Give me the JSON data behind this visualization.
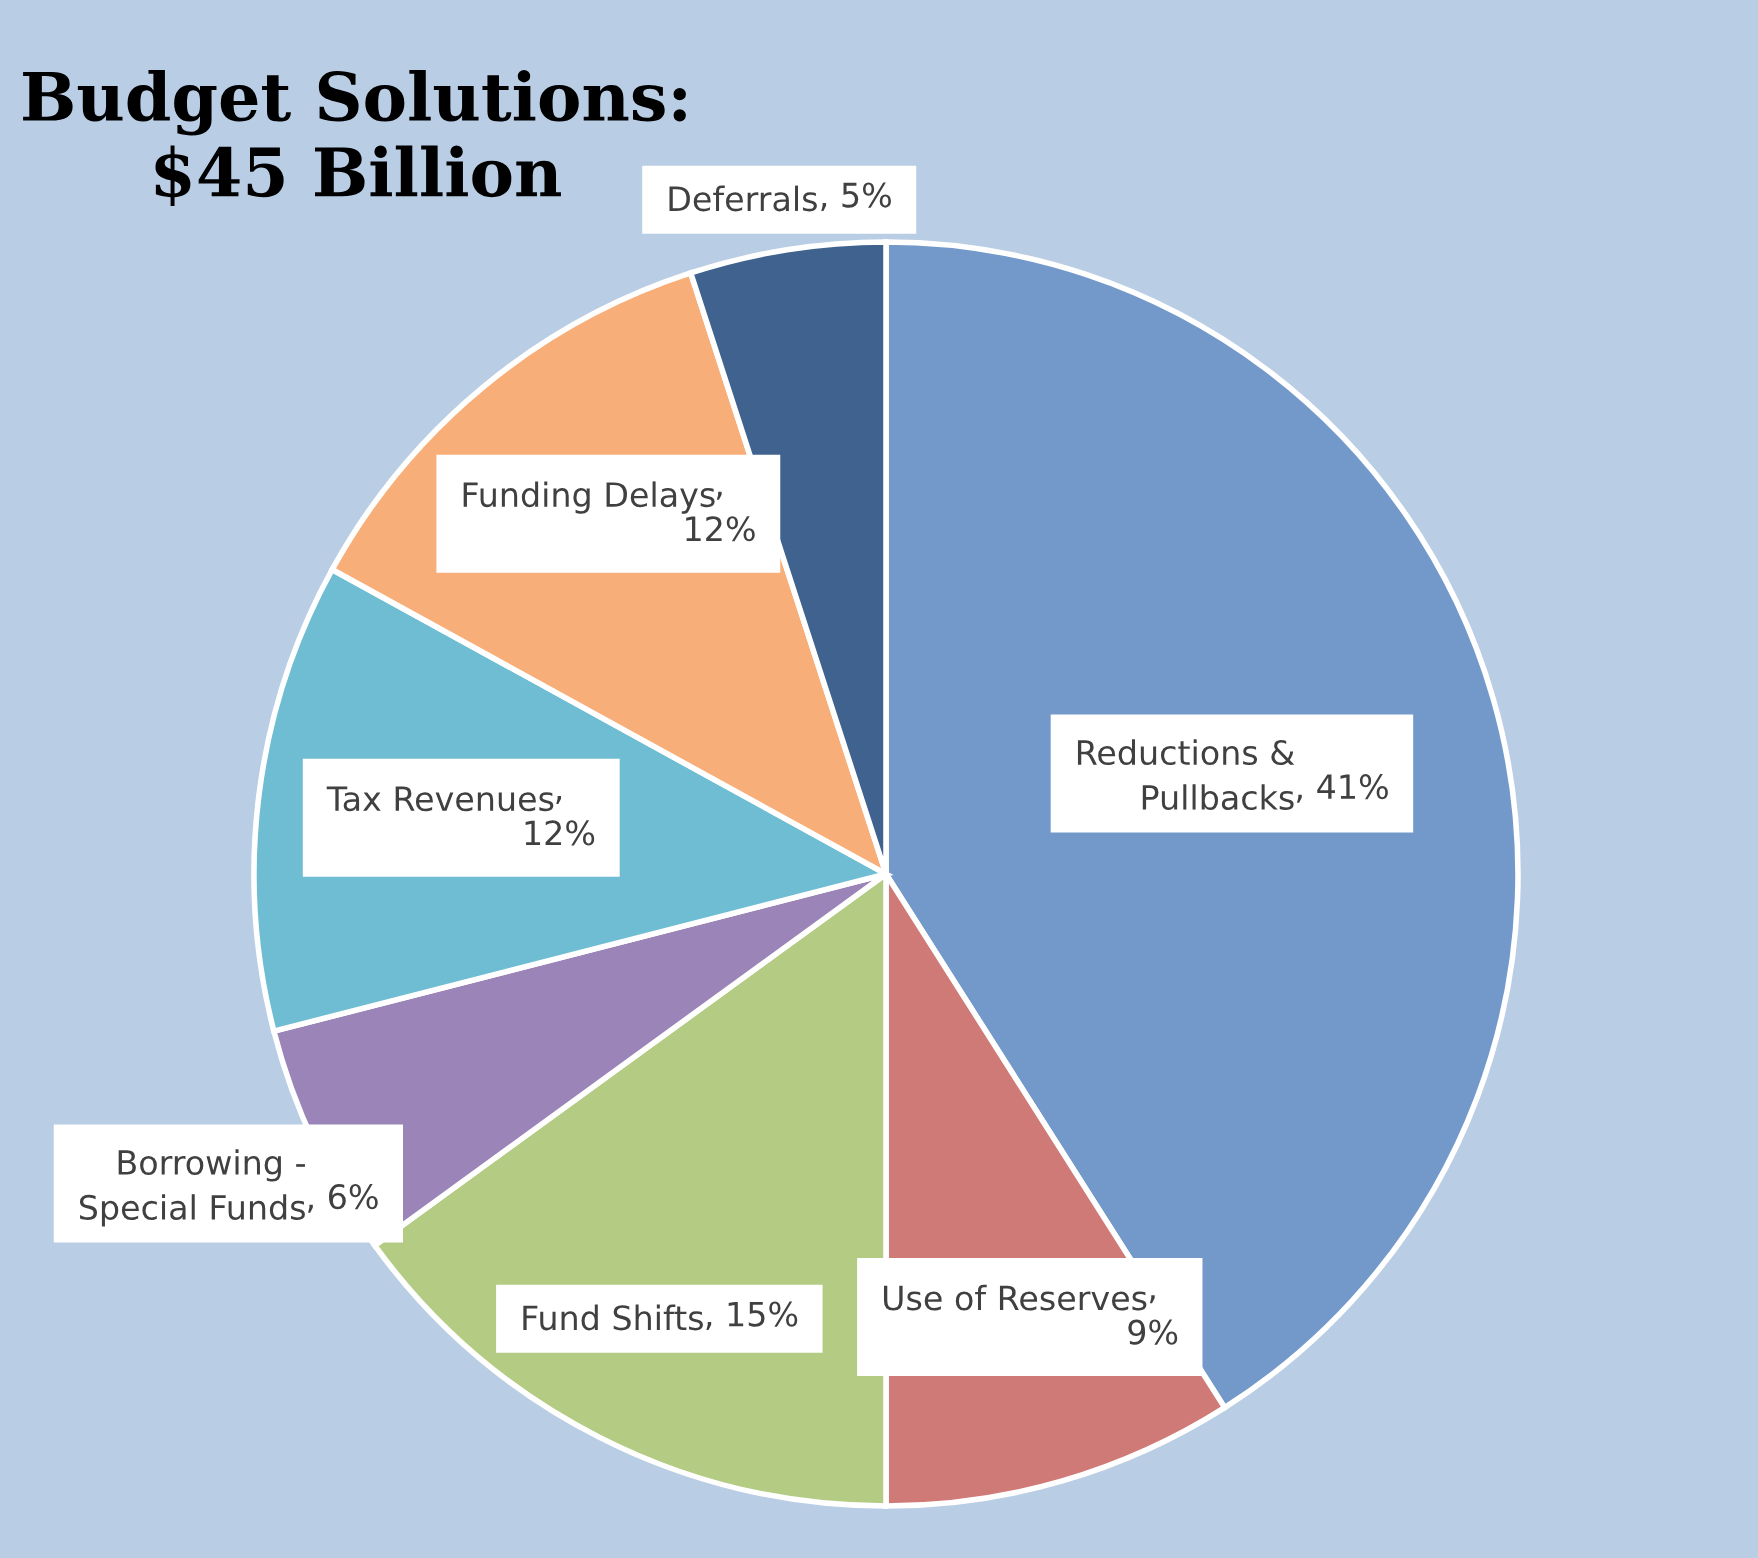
{
  "chart_data": {
    "type": "pie",
    "title": "Budget Solutions:\n$45 Billion",
    "categories": [
      "Reductions & Pullbacks",
      "Use of Reserves",
      "Fund Shifts",
      "Borrowing - Special Funds",
      "Tax Revenues",
      "Funding Delays",
      "Deferrals"
    ],
    "values": [
      41,
      9,
      15,
      6,
      12,
      12,
      5
    ],
    "colors": [
      "#7399cb",
      "#d07a78",
      "#b3cb82",
      "#9b85b8",
      "#6fbdd3",
      "#f7ae78",
      "#3f628f"
    ],
    "value_labels": [
      ", 41%",
      ",\n9%",
      ", 15%",
      ", 6%",
      ",\n12%",
      ",\n12%",
      ", 5%"
    ],
    "legend": false
  }
}
